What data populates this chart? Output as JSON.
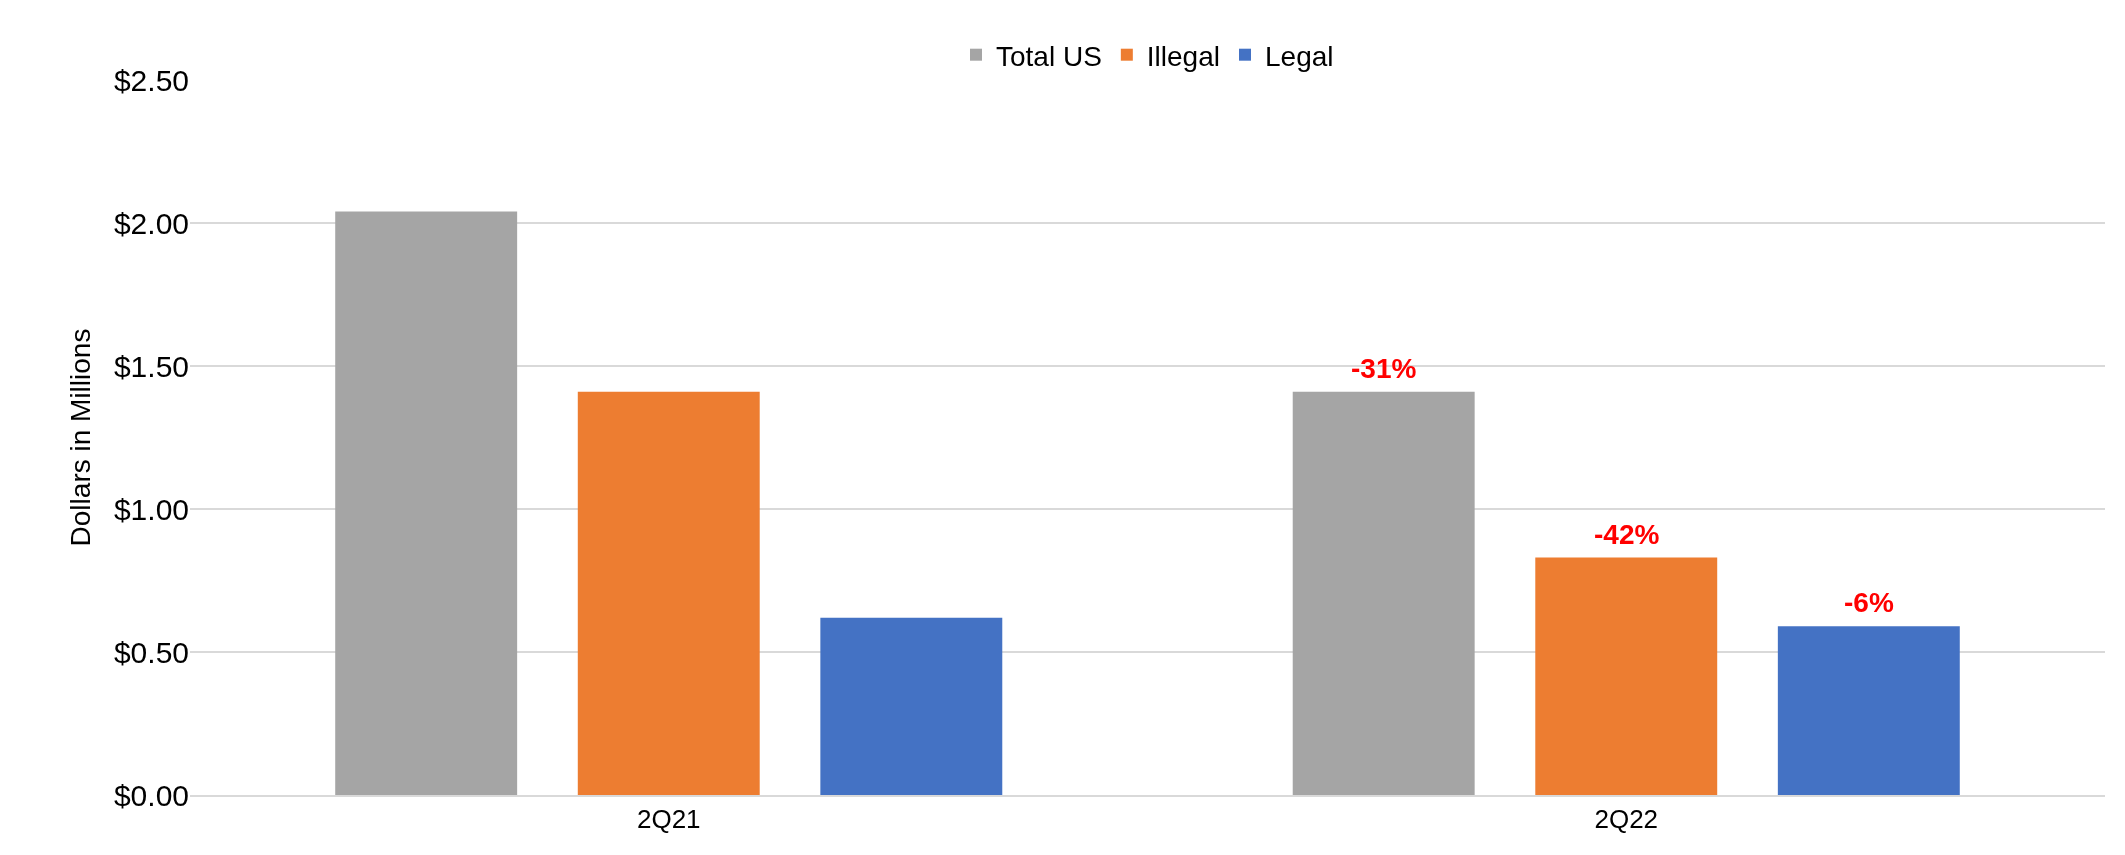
{
  "chart_data": {
    "type": "bar",
    "ylabel": "Dollars in Millions",
    "categories": [
      "2Q21",
      "2Q22"
    ],
    "series": [
      {
        "name": "Total US",
        "color": "#a5a5a5",
        "values": [
          2.04,
          1.41
        ]
      },
      {
        "name": "Illegal",
        "color": "#ed7d31",
        "values": [
          1.41,
          0.83
        ]
      },
      {
        "name": "Legal",
        "color": "#4472c4",
        "values": [
          0.62,
          0.59
        ]
      }
    ],
    "annotations": [
      "-31%",
      "-42%",
      "-6%"
    ],
    "ylim": [
      0,
      2.5
    ],
    "yticks": [
      {
        "value": 0,
        "label": "$0.00"
      },
      {
        "value": 0.5,
        "label": "$0.50"
      },
      {
        "value": 1,
        "label": "$1.00"
      },
      {
        "value": 1.5,
        "label": "$1.50"
      },
      {
        "value": 2,
        "label": "$2.00"
      },
      {
        "value": 2.5,
        "label": "$2.50"
      }
    ],
    "grid": "y",
    "legend": "top"
  }
}
